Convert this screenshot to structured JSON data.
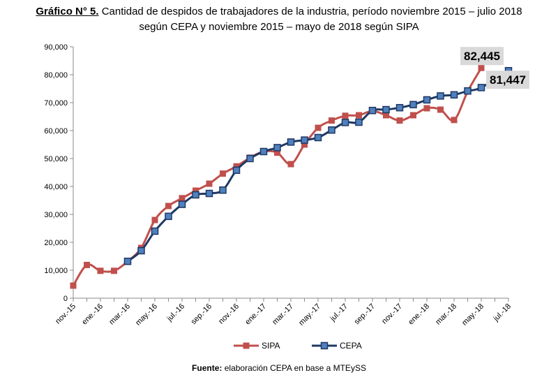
{
  "title": {
    "prefix": "Gráfico N° 5.",
    "text": " Cantidad de despidos de trabajadores de la industria, período noviembre 2015 – julio 2018 según CEPA y noviembre 2015 – mayo de 2018 según SIPA"
  },
  "source": {
    "prefix": "Fuente:",
    "text": " elaboración CEPA en base a MTEySS"
  },
  "chart_data": {
    "type": "line",
    "ylim": [
      0,
      90000
    ],
    "yticks": [
      0,
      10000,
      20000,
      30000,
      40000,
      50000,
      60000,
      70000,
      80000,
      90000
    ],
    "ytick_labels": [
      "0",
      "10,000",
      "20,000",
      "30,000",
      "40,000",
      "50,000",
      "60,000",
      "70,000",
      "80,000",
      "90,000"
    ],
    "categories": [
      "nov.-15",
      "dic.-15",
      "ene.-16",
      "feb.-16",
      "mar.-16",
      "abr.-16",
      "may.-16",
      "jun.-16",
      "jul.-16",
      "ago.-16",
      "sep.-16",
      "oct.-16",
      "nov.-16",
      "dic.-16",
      "ene.-17",
      "feb.-17",
      "mar.-17",
      "abr.-17",
      "may.-17",
      "jun.-17",
      "jul.-17",
      "ago.-17",
      "sep.-17",
      "oct.-17",
      "nov.-17",
      "dic.-17",
      "ene.-18",
      "feb.-18",
      "mar.-18",
      "abr.-18",
      "may.-18",
      "jun.-18",
      "jul.-18"
    ],
    "xtick_labels": [
      "nov.-15",
      "",
      "ene.-16",
      "",
      "mar.-16",
      "",
      "may.-16",
      "",
      "jul.-16",
      "",
      "sep.-16",
      "",
      "nov.-16",
      "",
      "ene.-17",
      "",
      "mar.-17",
      "",
      "may.-17",
      "",
      "jul.-17",
      "",
      "sep.-17",
      "",
      "nov.-17",
      "",
      "ene.-18",
      "",
      "mar.-18",
      "",
      "may.-18",
      "",
      "jul.-18"
    ],
    "legend_position": "bottom",
    "series": [
      {
        "name": "SIPA",
        "color": "#c0504d",
        "marker": "square",
        "values": [
          4500,
          11900,
          9800,
          9800,
          13200,
          18000,
          28000,
          33000,
          35800,
          38500,
          41000,
          44600,
          47200,
          50300,
          52500,
          52100,
          48000,
          55000,
          61000,
          63600,
          65300,
          65500,
          67000,
          65500,
          63600,
          65500,
          68000,
          67500,
          63800,
          74000,
          82445,
          null,
          null
        ]
      },
      {
        "name": "CEPA",
        "color": "#1f3864",
        "marker_color": "#4f81bd",
        "marker": "square",
        "values": [
          null,
          null,
          null,
          null,
          13200,
          17000,
          24000,
          29300,
          33600,
          37000,
          37500,
          38700,
          45800,
          50000,
          52500,
          53900,
          55900,
          56600,
          57500,
          60200,
          62900,
          63000,
          67200,
          67500,
          68200,
          69300,
          71000,
          72400,
          72800,
          74200,
          75400,
          null,
          81447
        ]
      }
    ],
    "callouts": [
      {
        "label": "82,445",
        "series": "SIPA",
        "index": 30
      },
      {
        "label": "81,447",
        "series": "CEPA",
        "index": 32
      }
    ]
  }
}
